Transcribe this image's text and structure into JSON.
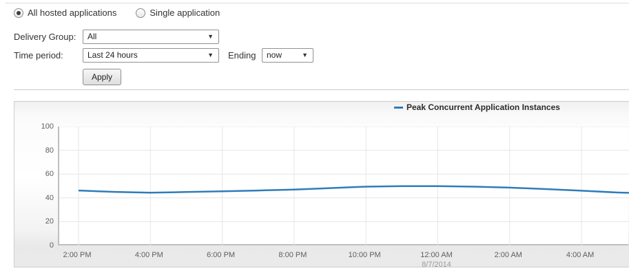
{
  "colors": {
    "series_blue": "#2e7cba",
    "grid": "#e6e6e6",
    "axis": "#bfbfbf"
  },
  "filters": {
    "radio_all_label": "All hosted applications",
    "radio_all_selected": true,
    "radio_single_label": "Single application",
    "radio_single_selected": false,
    "delivery_group_label": "Delivery Group:",
    "delivery_group_value": "All",
    "time_period_label": "Time period:",
    "time_period_value": "Last 24 hours",
    "ending_label": "Ending",
    "ending_value": "now",
    "apply_label": "Apply"
  },
  "chart_data": {
    "type": "line",
    "legend": "Peak Concurrent Application Instances",
    "ylim": [
      0,
      100
    ],
    "y_ticks": [
      0,
      20,
      40,
      60,
      80,
      100
    ],
    "x_ticks": [
      {
        "t": 0,
        "label": "2:00 PM"
      },
      {
        "t": 2,
        "label": "4:00 PM"
      },
      {
        "t": 4,
        "label": "6:00 PM"
      },
      {
        "t": 6,
        "label": "8:00 PM"
      },
      {
        "t": 8,
        "label": "10:00 PM"
      },
      {
        "t": 10,
        "label": "12:00 AM"
      },
      {
        "t": 12,
        "label": "2:00 AM"
      },
      {
        "t": 14,
        "label": "4:00 AM"
      }
    ],
    "x_date_label": {
      "t": 10,
      "label": "8/7/2014"
    },
    "grid": true,
    "legend_position": "top",
    "series": [
      {
        "name": "Peak Concurrent Application Instances",
        "color": "#2e7cba",
        "points": [
          {
            "t": 0,
            "v": 46.2
          },
          {
            "t": 1,
            "v": 45.0
          },
          {
            "t": 2,
            "v": 44.4
          },
          {
            "t": 3,
            "v": 44.9
          },
          {
            "t": 4,
            "v": 45.5
          },
          {
            "t": 5,
            "v": 46.2
          },
          {
            "t": 6,
            "v": 47.0
          },
          {
            "t": 7,
            "v": 48.2
          },
          {
            "t": 8,
            "v": 49.4
          },
          {
            "t": 9,
            "v": 49.8
          },
          {
            "t": 10,
            "v": 49.8
          },
          {
            "t": 11,
            "v": 49.4
          },
          {
            "t": 12,
            "v": 48.6
          },
          {
            "t": 13,
            "v": 47.4
          },
          {
            "t": 14,
            "v": 46.0
          },
          {
            "t": 15,
            "v": 44.5
          },
          {
            "t": 15.34,
            "v": 44.2
          }
        ]
      }
    ]
  }
}
